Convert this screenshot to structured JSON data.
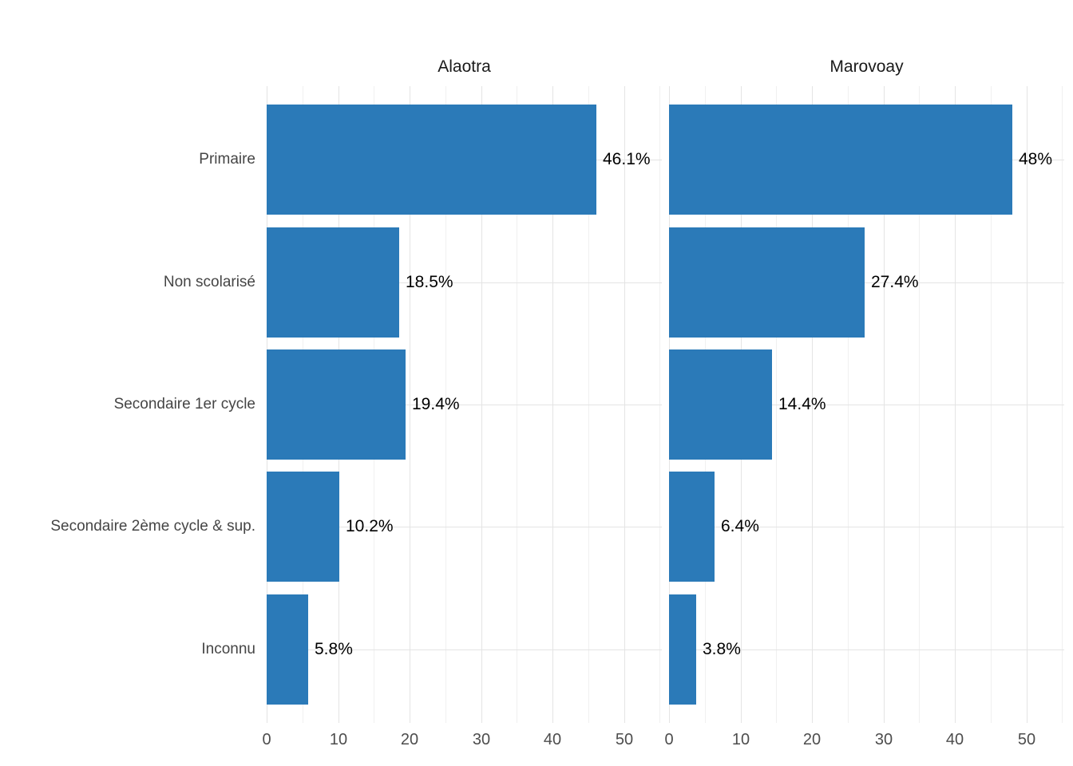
{
  "chart_data": {
    "type": "bar",
    "orientation": "horizontal",
    "title": "",
    "xlabel": "",
    "ylabel": "",
    "categories": [
      "Primaire",
      "Non scolarisé",
      "Secondaire 1er cycle",
      "Secondaire 2ème cycle & sup.",
      "Inconnu"
    ],
    "facets": [
      {
        "title": "Alaotra",
        "values": [
          46.1,
          18.5,
          19.4,
          10.2,
          5.8
        ],
        "value_labels": [
          "46.1%",
          "18.5%",
          "19.4%",
          "10.2%",
          "5.8%"
        ]
      },
      {
        "title": "Marovoay",
        "values": [
          48,
          27.4,
          14.4,
          6.4,
          3.8
        ],
        "value_labels": [
          "48%",
          "27.4%",
          "14.4%",
          "6.4%",
          "3.8%"
        ]
      }
    ],
    "x_ticks": [
      0,
      10,
      20,
      30,
      40,
      50
    ],
    "x_minor_ticks": [
      5,
      15,
      25,
      35,
      45,
      55
    ],
    "xlim": [
      0,
      55.3
    ],
    "grid": true,
    "legend": "none",
    "colors": {
      "bar": "#2b7ab8",
      "grid_major": "#e4e4e4",
      "grid_minor": "#f0f0f0",
      "facet_title_text": "#1a1a1a",
      "axis_text": "#4d4d4d",
      "category_text": "#454545",
      "value_label_text": "#000000",
      "background": "#ffffff"
    }
  }
}
